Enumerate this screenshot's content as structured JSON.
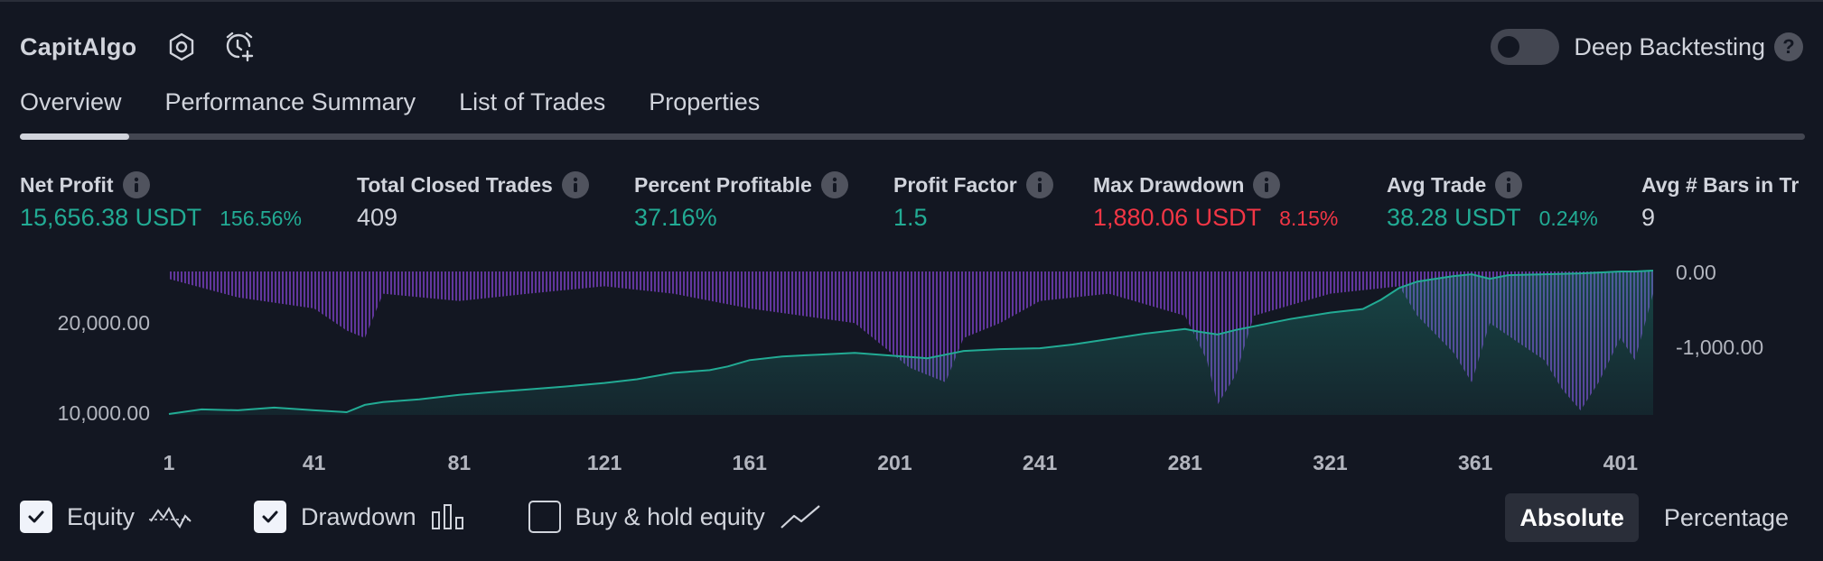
{
  "header": {
    "strategy_name": "CapitAlgo",
    "icons": [
      "settings-hex-icon",
      "alarm-add-icon"
    ],
    "deep_backtesting": {
      "label": "Deep Backtesting",
      "enabled": false,
      "help": "?"
    }
  },
  "tabs": [
    {
      "label": "Overview",
      "active": true
    },
    {
      "label": "Performance Summary",
      "active": false
    },
    {
      "label": "List of Trades",
      "active": false
    },
    {
      "label": "Properties",
      "active": false
    }
  ],
  "metrics": [
    {
      "label": "Net Profit",
      "value": "15,656.38 USDT",
      "sub": "156.56%",
      "color": "#22ab94"
    },
    {
      "label": "Total Closed Trades",
      "value": "409",
      "sub": "",
      "color": "#d1d4dc"
    },
    {
      "label": "Percent Profitable",
      "value": "37.16%",
      "sub": "",
      "color": "#22ab94"
    },
    {
      "label": "Profit Factor",
      "value": "1.5",
      "sub": "",
      "color": "#22ab94"
    },
    {
      "label": "Max Drawdown",
      "value": "1,880.06 USDT",
      "sub": "8.15%",
      "color": "#f23645"
    },
    {
      "label": "Avg Trade",
      "value": "38.28 USDT",
      "sub": "0.24%",
      "color": "#22ab94"
    },
    {
      "label": "Avg # Bars in Tr",
      "value": "9",
      "sub": "",
      "color": "#d1d4dc"
    }
  ],
  "chart_data": {
    "type": "area",
    "x_ticks": [
      "1",
      "41",
      "81",
      "121",
      "161",
      "201",
      "241",
      "281",
      "321",
      "361",
      "401"
    ],
    "y_left_ticks": [
      "20,000.00",
      "10,000.00"
    ],
    "y_right_ticks": [
      "0.00",
      "-1,000.00"
    ],
    "x_range": [
      1,
      410
    ],
    "y_left_range": [
      9900,
      26000
    ],
    "y_right_range": [
      -1880,
      0
    ],
    "series": [
      {
        "role": "equity",
        "color": "#22ab94",
        "x": [
          1,
          10,
          20,
          30,
          41,
          50,
          55,
          60,
          70,
          81,
          90,
          100,
          110,
          121,
          130,
          140,
          150,
          155,
          161,
          170,
          180,
          190,
          200,
          210,
          215,
          220,
          230,
          241,
          250,
          260,
          270,
          281,
          285,
          290,
          295,
          300,
          305,
          310,
          321,
          330,
          335,
          340,
          345,
          350,
          355,
          360,
          365,
          370,
          380,
          390,
          401,
          405,
          410
        ],
        "y": [
          10000,
          10500,
          10400,
          10700,
          10400,
          10200,
          11000,
          11300,
          11600,
          12100,
          12400,
          12700,
          13000,
          13400,
          13800,
          14500,
          14800,
          15200,
          15900,
          16300,
          16500,
          16700,
          16400,
          16100,
          16500,
          16900,
          17100,
          17200,
          17600,
          18200,
          18800,
          19300,
          19000,
          18700,
          19200,
          19600,
          20000,
          20400,
          21100,
          21500,
          22500,
          23800,
          24500,
          24800,
          25100,
          25300,
          24800,
          25200,
          25300,
          25400,
          25600,
          25600,
          25700
        ]
      },
      {
        "role": "drawdown",
        "color": "#7b40c4",
        "x": [
          1,
          20,
          41,
          50,
          55,
          60,
          81,
          100,
          121,
          140,
          161,
          190,
          205,
          215,
          220,
          230,
          241,
          260,
          281,
          287,
          290,
          295,
          300,
          321,
          340,
          345,
          355,
          360,
          365,
          380,
          385,
          390,
          395,
          401,
          405,
          410
        ],
        "y": [
          -100,
          -350,
          -500,
          -800,
          -900,
          -300,
          -400,
          -300,
          -200,
          -300,
          -500,
          -700,
          -1300,
          -1500,
          -900,
          -700,
          -400,
          -300,
          -600,
          -1200,
          -1800,
          -1400,
          -600,
          -300,
          -200,
          -600,
          -1100,
          -1500,
          -700,
          -1200,
          -1600,
          -1880,
          -1500,
          -900,
          -1200,
          -300
        ]
      }
    ],
    "grid": false
  },
  "legend": [
    {
      "label": "Equity",
      "checked": true,
      "icon": "equity-line-icon"
    },
    {
      "label": "Drawdown",
      "checked": true,
      "icon": "drawdown-bars-icon"
    },
    {
      "label": "Buy & hold equity",
      "checked": false,
      "icon": "buy-hold-line-icon"
    }
  ],
  "mode": {
    "options": [
      "Absolute",
      "Percentage"
    ],
    "selected": "Absolute"
  }
}
